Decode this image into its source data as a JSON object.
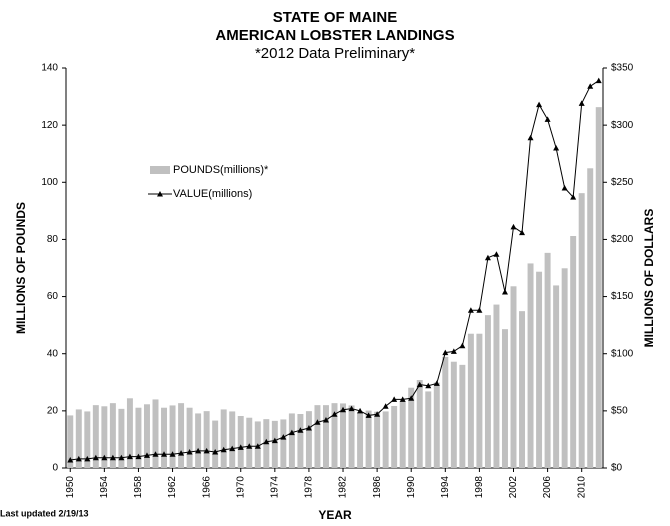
{
  "chart_data": {
    "type": "bar_line",
    "title": "STATE OF MAINE",
    "subtitle": "AMERICAN LOBSTER LANDINGS",
    "note": "*2012 Data Preliminary*",
    "xlabel": "YEAR",
    "ylabel": "MILLIONS OF POUNDS",
    "y2label": "MILLIONS OF DOLLARS",
    "footer": "Last updated 2/19/13",
    "categories": [
      "1950",
      null,
      null,
      null,
      "1954",
      null,
      null,
      null,
      "1958",
      null,
      null,
      null,
      "1962",
      null,
      null,
      null,
      "1966",
      null,
      null,
      null,
      "1970",
      null,
      null,
      null,
      "1974",
      null,
      null,
      null,
      "1978",
      null,
      null,
      null,
      "1982",
      null,
      null,
      null,
      "1986",
      null,
      null,
      null,
      "1990",
      null,
      null,
      null,
      "1994",
      null,
      null,
      null,
      "1998",
      null,
      null,
      null,
      "2002",
      null,
      null,
      null,
      "2006",
      null,
      null,
      null,
      "2010",
      null,
      null
    ],
    "series": [
      {
        "name": "POUNDS(millions)*",
        "color": "#c0c0c0",
        "type": "bar",
        "values": [
          18.4,
          20.5,
          19.8,
          22.0,
          21.6,
          22.7,
          20.7,
          24.4,
          21.1,
          22.3,
          24.0,
          21.1,
          21.9,
          22.7,
          21.1,
          19.1,
          19.9,
          16.6,
          20.5,
          19.8,
          18.2,
          17.6,
          16.3,
          17.1,
          16.5,
          17.0,
          19.1,
          18.9,
          19.9,
          22.0,
          22.0,
          22.7,
          22.6,
          21.9,
          19.5,
          20.1,
          19.7,
          19.8,
          21.7,
          23.4,
          28.1,
          30.8,
          26.8,
          29.9,
          38.9,
          37.2,
          36.1,
          47.0,
          47.0,
          53.5,
          57.2,
          48.6,
          63.6,
          54.9,
          71.6,
          68.7,
          75.3,
          63.9,
          69.9,
          81.2,
          96.2,
          104.9,
          126.3
        ]
      },
      {
        "name": "VALUE(millions)",
        "color": "#000000",
        "type": "line",
        "axis": "y2",
        "values": [
          7,
          8,
          8,
          9,
          9,
          9,
          9,
          10,
          10,
          11,
          12,
          12,
          12,
          13,
          14,
          15,
          15,
          14,
          16,
          17,
          18,
          19,
          19,
          23,
          24,
          27,
          31,
          33,
          35,
          40,
          42,
          47,
          51,
          52,
          50,
          46,
          47,
          54,
          60,
          60,
          61,
          73,
          72,
          74,
          101,
          102,
          107,
          138,
          138,
          184,
          187,
          154,
          211,
          206,
          289,
          318,
          305,
          280,
          245,
          237,
          319,
          334,
          339
        ]
      }
    ],
    "ylim": [
      0,
      140
    ],
    "yticks": [
      0,
      20,
      40,
      60,
      80,
      100,
      120,
      140
    ],
    "y2lim": [
      0,
      350
    ],
    "y2ticks": [
      {
        "value": 0,
        "label": "$0"
      },
      {
        "value": 50,
        "label": "$50"
      },
      {
        "value": 100,
        "label": "$100"
      },
      {
        "value": 150,
        "label": "$150"
      },
      {
        "value": 200,
        "label": "$200"
      },
      {
        "value": 250,
        "label": "$250"
      },
      {
        "value": 300,
        "label": "$300"
      },
      {
        "value": 350,
        "label": "$350"
      }
    ]
  }
}
